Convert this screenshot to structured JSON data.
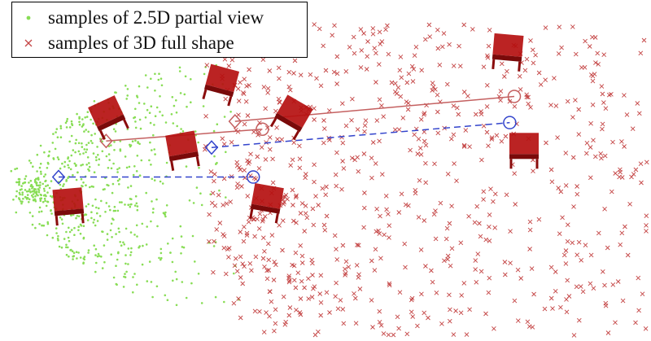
{
  "colors": {
    "partial": "#88dd55",
    "full": "#c44444",
    "solid_link": "#c46060",
    "dashed_link": "#3344cc",
    "chair": "#b51010"
  },
  "legend": {
    "position": "top-left",
    "items": [
      {
        "label": "samples of 2.5D partial view",
        "marker": "point",
        "color": "#88dd55"
      },
      {
        "label": "samples of 3D full shape",
        "marker": "x",
        "color": "#c44444"
      }
    ]
  },
  "chart_data": {
    "type": "scatter",
    "axes_visible": false,
    "grid": false,
    "xlim": [
      0,
      100
    ],
    "ylim": [
      0,
      52
    ],
    "series": [
      {
        "name": "samples of 2.5D partial view",
        "marker": "point",
        "color": "#88dd55",
        "region": {
          "x_range": [
            0,
            38
          ],
          "y_range": [
            8,
            50
          ],
          "dense_center": [
            4,
            23
          ],
          "approx_count": 700
        }
      },
      {
        "name": "samples of 3D full shape",
        "marker": "x",
        "color": "#c44444",
        "region": {
          "x_range": [
            30,
            100
          ],
          "y_range": [
            0,
            48
          ],
          "approx_count": 1100
        }
      }
    ],
    "correspondences": [
      {
        "style": "solid",
        "color": "#c46060",
        "from": {
          "marker": "diamond",
          "x": 16.3,
          "y": 30.5
        },
        "to": {
          "marker": "circle",
          "x": 40.3,
          "y": 32.3
        }
      },
      {
        "style": "solid",
        "color": "#c46060",
        "from": {
          "marker": "diamond",
          "x": 36.1,
          "y": 33.5
        },
        "to": {
          "marker": "circle",
          "x": 79.0,
          "y": 37.3
        }
      },
      {
        "style": "dashed",
        "color": "#3344cc",
        "from": {
          "marker": "diamond",
          "x": 32.5,
          "y": 29.5
        },
        "to": {
          "marker": "circle",
          "x": 78.3,
          "y": 33.3
        }
      },
      {
        "style": "dashed",
        "color": "#3344cc",
        "from": {
          "marker": "diamond",
          "x": 9.0,
          "y": 25.0
        },
        "to": {
          "marker": "circle",
          "x": 38.9,
          "y": 25.0
        }
      }
    ],
    "thumbnails": [
      {
        "name": "chair-thumbnail-1",
        "x": 16.5,
        "y": 34.5
      },
      {
        "name": "chair-thumbnail-2",
        "x": 34.0,
        "y": 39.5
      },
      {
        "name": "chair-thumbnail-3",
        "x": 45.0,
        "y": 34.5
      },
      {
        "name": "chair-thumbnail-4",
        "x": 28.0,
        "y": 29.5
      },
      {
        "name": "chair-thumbnail-5",
        "x": 78.0,
        "y": 44.5
      },
      {
        "name": "chair-thumbnail-6",
        "x": 80.5,
        "y": 29.5
      },
      {
        "name": "chair-thumbnail-7",
        "x": 10.5,
        "y": 21.0
      },
      {
        "name": "chair-thumbnail-8",
        "x": 41.0,
        "y": 21.5
      }
    ]
  }
}
